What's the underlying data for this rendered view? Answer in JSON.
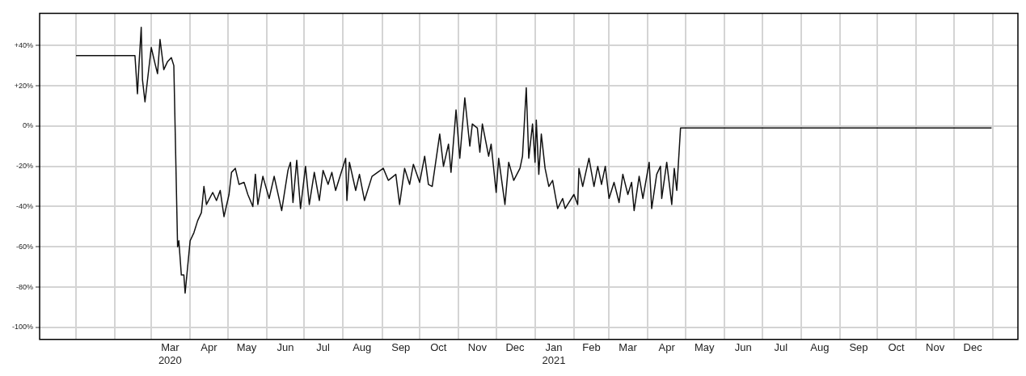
{
  "chart_data": {
    "type": "line",
    "xlim": [
      "2019-12-03",
      "2022-01-21"
    ],
    "ylim": [
      -106,
      56
    ],
    "yticks": [
      {
        "value": -100,
        "label": "-100%"
      },
      {
        "value": -80,
        "label": "-80%"
      },
      {
        "value": -60,
        "label": "-60%"
      },
      {
        "value": -40,
        "label": "-40%"
      },
      {
        "value": -20,
        "label": "-20%"
      },
      {
        "value": 0,
        "label": "0%"
      },
      {
        "value": 20,
        "label": "+20%"
      },
      {
        "value": 40,
        "label": "+40%"
      }
    ],
    "xticks": [
      {
        "value": "2020-01-01",
        "label": null
      },
      {
        "value": "2020-02-01",
        "label": null
      },
      {
        "value": "2020-03-01",
        "label": null
      },
      {
        "value": "2020-03-16",
        "label": "Mar 2020"
      },
      {
        "value": "2020-04-01",
        "label": null
      },
      {
        "value": "2020-04-16",
        "label": "Apr"
      },
      {
        "value": "2020-05-01",
        "label": null
      },
      {
        "value": "2020-05-16",
        "label": "May"
      },
      {
        "value": "2020-06-01",
        "label": null
      },
      {
        "value": "2020-06-16",
        "label": "Jun"
      },
      {
        "value": "2020-07-01",
        "label": null
      },
      {
        "value": "2020-07-16",
        "label": "Jul"
      },
      {
        "value": "2020-08-01",
        "label": null
      },
      {
        "value": "2020-08-16",
        "label": "Aug"
      },
      {
        "value": "2020-09-01",
        "label": null
      },
      {
        "value": "2020-09-16",
        "label": "Sep"
      },
      {
        "value": "2020-10-01",
        "label": null
      },
      {
        "value": "2020-10-16",
        "label": "Oct"
      },
      {
        "value": "2020-11-01",
        "label": null
      },
      {
        "value": "2020-11-16",
        "label": "Nov"
      },
      {
        "value": "2020-12-01",
        "label": null
      },
      {
        "value": "2020-12-16",
        "label": "Dec"
      },
      {
        "value": "2021-01-01",
        "label": null
      },
      {
        "value": "2021-01-16",
        "label": "Jan 2021"
      },
      {
        "value": "2021-02-01",
        "label": null
      },
      {
        "value": "2021-02-15",
        "label": "Feb"
      },
      {
        "value": "2021-03-01",
        "label": null
      },
      {
        "value": "2021-03-16",
        "label": "Mar"
      },
      {
        "value": "2021-04-01",
        "label": null
      },
      {
        "value": "2021-04-16",
        "label": "Apr"
      },
      {
        "value": "2021-05-01",
        "label": null
      },
      {
        "value": "2021-05-16",
        "label": "May"
      },
      {
        "value": "2021-06-01",
        "label": null
      },
      {
        "value": "2021-06-16",
        "label": "Jun"
      },
      {
        "value": "2021-07-01",
        "label": null
      },
      {
        "value": "2021-07-16",
        "label": "Jul"
      },
      {
        "value": "2021-08-01",
        "label": null
      },
      {
        "value": "2021-08-16",
        "label": "Aug"
      },
      {
        "value": "2021-09-01",
        "label": null
      },
      {
        "value": "2021-09-16",
        "label": "Sep"
      },
      {
        "value": "2021-10-01",
        "label": null
      },
      {
        "value": "2021-10-16",
        "label": "Oct"
      },
      {
        "value": "2021-11-01",
        "label": null
      },
      {
        "value": "2021-11-16",
        "label": "Nov"
      },
      {
        "value": "2021-12-01",
        "label": null
      },
      {
        "value": "2021-12-16",
        "label": "Dec"
      },
      {
        "value": "2022-01-01",
        "label": null
      }
    ],
    "grid": true,
    "legend": false,
    "marker": "none",
    "line_style": "solid",
    "series": [
      {
        "color": "#111111",
        "x": [
          "2020-01-01",
          "2020-02-17",
          "2020-02-19",
          "2020-02-20",
          "2020-02-22",
          "2020-02-23",
          "2020-02-25",
          "2020-03-01",
          "2020-03-04",
          "2020-03-06",
          "2020-03-08",
          "2020-03-11",
          "2020-03-14",
          "2020-03-17",
          "2020-03-19",
          "2020-03-20",
          "2020-03-22",
          "2020-03-23",
          "2020-03-25",
          "2020-03-27",
          "2020-03-28",
          "2020-04-01",
          "2020-04-04",
          "2020-04-07",
          "2020-04-10",
          "2020-04-12",
          "2020-04-14",
          "2020-04-19",
          "2020-04-22",
          "2020-04-25",
          "2020-04-28",
          "2020-05-02",
          "2020-05-04",
          "2020-05-07",
          "2020-05-10",
          "2020-05-14",
          "2020-05-17",
          "2020-05-21",
          "2020-05-23",
          "2020-05-25",
          "2020-05-29",
          "2020-06-03",
          "2020-06-07",
          "2020-06-13",
          "2020-06-18",
          "2020-06-20",
          "2020-06-22",
          "2020-06-25",
          "2020-06-28",
          "2020-07-02",
          "2020-07-05",
          "2020-07-09",
          "2020-07-13",
          "2020-07-16",
          "2020-07-20",
          "2020-07-23",
          "2020-07-26",
          "2020-08-03",
          "2020-08-04",
          "2020-08-06",
          "2020-08-11",
          "2020-08-14",
          "2020-08-18",
          "2020-08-24",
          "2020-09-02",
          "2020-09-06",
          "2020-09-12",
          "2020-09-15",
          "2020-09-19",
          "2020-09-23",
          "2020-09-26",
          "2020-10-01",
          "2020-10-05",
          "2020-10-08",
          "2020-10-11",
          "2020-10-17",
          "2020-10-20",
          "2020-10-24",
          "2020-10-26",
          "2020-10-30",
          "2020-11-02",
          "2020-11-06",
          "2020-11-10",
          "2020-11-12",
          "2020-11-16",
          "2020-11-18",
          "2020-11-20",
          "2020-11-25",
          "2020-11-27",
          "2020-12-01",
          "2020-12-03",
          "2020-12-08",
          "2020-12-11",
          "2020-12-15",
          "2020-12-20",
          "2020-12-22",
          "2020-12-25",
          "2020-12-27",
          "2020-12-30",
          "2021-01-01",
          "2021-01-02",
          "2021-01-04",
          "2021-01-06",
          "2021-01-09",
          "2021-01-12",
          "2021-01-15",
          "2021-01-19",
          "2021-01-23",
          "2021-01-25",
          "2021-02-01",
          "2021-02-04",
          "2021-02-05",
          "2021-02-08",
          "2021-02-13",
          "2021-02-17",
          "2021-02-20",
          "2021-02-23",
          "2021-02-26",
          "2021-03-01",
          "2021-03-05",
          "2021-03-09",
          "2021-03-12",
          "2021-03-16",
          "2021-03-19",
          "2021-03-21",
          "2021-03-25",
          "2021-03-28",
          "2021-04-02",
          "2021-04-04",
          "2021-04-08",
          "2021-04-11",
          "2021-04-12",
          "2021-04-16",
          "2021-04-20",
          "2021-04-22",
          "2021-04-24",
          "2021-04-27",
          "2021-12-31"
        ],
        "values": [
          35,
          35,
          16,
          28,
          49,
          23,
          12,
          39,
          31,
          26,
          43,
          28,
          32,
          34,
          30,
          0,
          -60,
          -57,
          -74,
          -74,
          -83,
          -57,
          -53,
          -47,
          -43,
          -30,
          -39,
          -33,
          -37,
          -32,
          -45,
          -34,
          -23,
          -21,
          -29,
          -28,
          -34,
          -40,
          -24,
          -39,
          -25,
          -36,
          -25,
          -42,
          -22,
          -18,
          -38,
          -17,
          -41,
          -20,
          -39,
          -23,
          -37,
          -22,
          -29,
          -23,
          -32,
          -16,
          -37,
          -18,
          -32,
          -24,
          -37,
          -25,
          -21,
          -27,
          -24,
          -39,
          -21,
          -29,
          -19,
          -28,
          -15,
          -29,
          -30,
          -4,
          -20,
          -9,
          -23,
          8,
          -16,
          14,
          -10,
          1,
          -1,
          -13,
          1,
          -15,
          -9,
          -33,
          -16,
          -39,
          -18,
          -27,
          -21,
          -15,
          19,
          -16,
          1,
          -18,
          3,
          -24,
          -4,
          -21,
          -30,
          -27,
          -41,
          -36,
          -41,
          -34,
          -39,
          -21,
          -30,
          -16,
          -30,
          -20,
          -29,
          -20,
          -36,
          -28,
          -38,
          -24,
          -34,
          -28,
          -42,
          -25,
          -36,
          -18,
          -41,
          -24,
          -20,
          -36,
          -18,
          -39,
          -21,
          -32,
          -1,
          -1
        ]
      }
    ]
  }
}
